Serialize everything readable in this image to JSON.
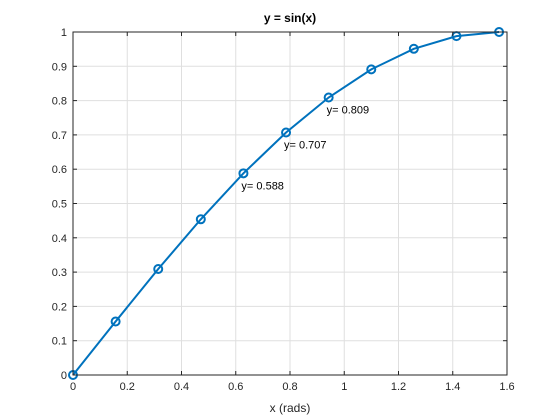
{
  "chart_data": {
    "type": "line",
    "title": "y = sin(x)",
    "xlabel": "x (rads)",
    "ylabel": "",
    "xlim": [
      0,
      1.6
    ],
    "ylim": [
      0,
      1
    ],
    "grid": true,
    "xticks": [
      0,
      0.2,
      0.4,
      0.6,
      0.8,
      1,
      1.2,
      1.4,
      1.6
    ],
    "xtick_labels": [
      "0",
      "0.2",
      "0.4",
      "0.6",
      "0.8",
      "1",
      "1.2",
      "1.4",
      "1.6"
    ],
    "yticks": [
      0,
      0.1,
      0.2,
      0.3,
      0.4,
      0.5,
      0.6,
      0.7,
      0.8,
      0.9,
      1
    ],
    "ytick_labels": [
      "0",
      "0.1",
      "0.2",
      "0.3",
      "0.4",
      "0.5",
      "0.6",
      "0.7",
      "0.8",
      "0.9",
      "1"
    ],
    "series": [
      {
        "color": "#0072bd",
        "marker": "circle",
        "x": [
          0,
          0.1571,
          0.3142,
          0.4712,
          0.6283,
          0.7854,
          0.9425,
          1.0996,
          1.2566,
          1.4137,
          1.5708
        ],
        "y": [
          0,
          0.156,
          0.309,
          0.454,
          0.588,
          0.707,
          0.809,
          0.891,
          0.951,
          0.988,
          1
        ]
      }
    ],
    "annotations": [
      {
        "x": 0.6283,
        "y": 0.588,
        "text": "y= 0.588"
      },
      {
        "x": 0.7854,
        "y": 0.707,
        "text": "y= 0.707"
      },
      {
        "x": 0.9425,
        "y": 0.809,
        "text": "y= 0.809"
      }
    ]
  }
}
